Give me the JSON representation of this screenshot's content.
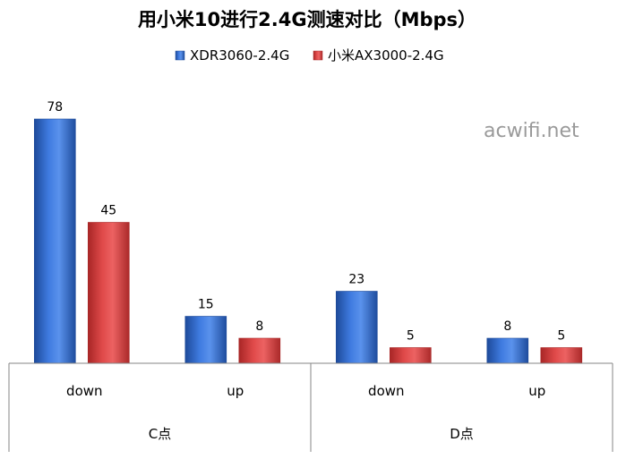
{
  "chart_data": {
    "type": "bar",
    "title": "用小米10进行2.4G测速对比（Mbps）",
    "groups": [
      {
        "label": "C点",
        "categories": [
          "down",
          "up"
        ]
      },
      {
        "label": "D点",
        "categories": [
          "down",
          "up"
        ]
      }
    ],
    "series": [
      {
        "name": "XDR3060-2.4G",
        "color": "#2e65c1",
        "values": [
          78,
          15,
          23,
          8
        ]
      },
      {
        "name": "小米AX3000-2.4G",
        "color": "#d23a3a",
        "values": [
          45,
          8,
          5,
          5
        ]
      }
    ],
    "ylim": [
      0,
      84
    ],
    "grid": false,
    "legend_position": "top-center",
    "watermark": "acwifi.net"
  }
}
